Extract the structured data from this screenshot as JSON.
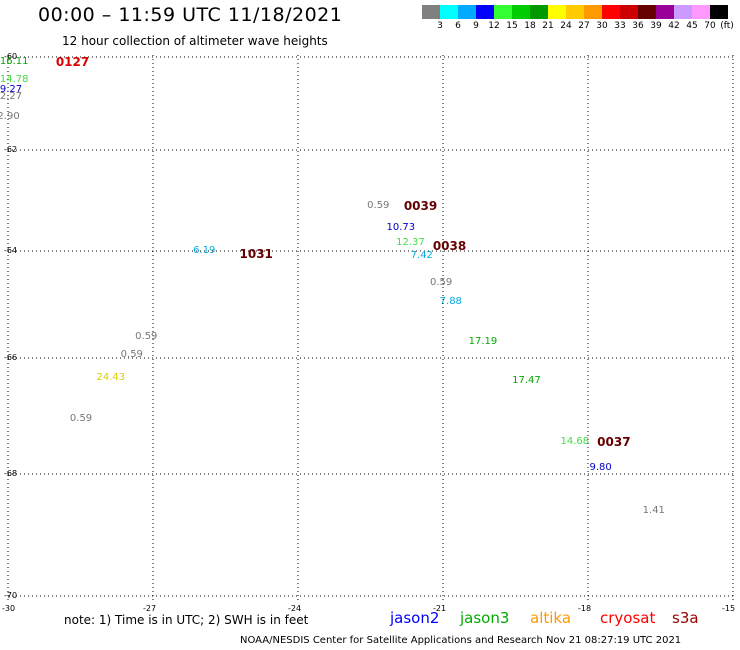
{
  "title": "00:00 – 11:59 UTC 11/18/2021",
  "subtitle": "12 hour collection of altimeter wave heights",
  "colorbar": {
    "colors": [
      "#808080",
      "#00ffff",
      "#00aaff",
      "#0000ff",
      "#33ff33",
      "#00cc00",
      "#009900",
      "#ffff00",
      "#ffcc00",
      "#ff9900",
      "#ff0000",
      "#cc0000",
      "#660000",
      "#990099",
      "#cc99ff",
      "#ff99ff",
      "#000000"
    ],
    "ticks": [
      "3",
      "6",
      "9",
      "12",
      "15",
      "18",
      "21",
      "24",
      "27",
      "30",
      "33",
      "36",
      "39",
      "42",
      "45",
      "70"
    ],
    "unit": "(ft)"
  },
  "axes": {
    "lat_labels": [
      "-60",
      "-62",
      "-64",
      "-66",
      "-68",
      "-70"
    ],
    "lon_labels": [
      "-30",
      "-27",
      "-24",
      "-21",
      "-18",
      "-15"
    ]
  },
  "observations": [
    {
      "text": "16.11",
      "color": "#00aa00",
      "lon": -29.9,
      "lat": -60.1
    },
    {
      "text": "14.78",
      "color": "#44dd44",
      "lon": -29.9,
      "lat": -60.5
    },
    {
      "text": "9.27",
      "color": "#0000cc",
      "lon": -29.9,
      "lat": -60.7
    },
    {
      "text": "2.27",
      "color": "#777777",
      "lon": -29.9,
      "lat": -60.85
    },
    {
      "text": "2.90",
      "color": "#777777",
      "lon": -29.95,
      "lat": -61.3
    },
    {
      "text": "0.59",
      "color": "#777777",
      "lon": -22.3,
      "lat": -63.1
    },
    {
      "text": "10.73",
      "color": "#0000cc",
      "lon": -21.9,
      "lat": -63.55
    },
    {
      "text": "12.37",
      "color": "#44dd44",
      "lon": -21.7,
      "lat": -63.85
    },
    {
      "text": "7.42",
      "color": "#00aadd",
      "lon": -21.4,
      "lat": -64.1
    },
    {
      "text": "0.59",
      "color": "#777777",
      "lon": -21.0,
      "lat": -64.6
    },
    {
      "text": "7.88",
      "color": "#00aadd",
      "lon": -20.8,
      "lat": -64.95
    },
    {
      "text": "17.19",
      "color": "#00aa00",
      "lon": -20.2,
      "lat": -65.7
    },
    {
      "text": "6.19",
      "color": "#00aadd",
      "lon": -25.9,
      "lat": -64.0
    },
    {
      "text": "0.59",
      "color": "#777777",
      "lon": -27.1,
      "lat": -65.6
    },
    {
      "text": "0.59",
      "color": "#777777",
      "lon": -27.4,
      "lat": -65.95
    },
    {
      "text": "24.43",
      "color": "#ddcc00",
      "lon": -27.9,
      "lat": -66.35
    },
    {
      "text": "0.59",
      "color": "#777777",
      "lon": -28.45,
      "lat": -67.05
    },
    {
      "text": "17.47",
      "color": "#00aa00",
      "lon": -19.3,
      "lat": -66.4
    },
    {
      "text": "14.68",
      "color": "#44dd44",
      "lon": -18.3,
      "lat": -67.45
    },
    {
      "text": "9.80",
      "color": "#0000cc",
      "lon": -17.7,
      "lat": -67.9
    },
    {
      "text": "1.41",
      "color": "#777777",
      "lon": -16.6,
      "lat": -68.6
    }
  ],
  "pass_labels": [
    {
      "text": "0127",
      "color": "#dd0000",
      "lon": -28.7,
      "lat": -60.1
    },
    {
      "text": "0039",
      "color": "#660000",
      "lon": -21.5,
      "lat": -63.1
    },
    {
      "text": "0038",
      "color": "#660000",
      "lon": -20.9,
      "lat": -63.9
    },
    {
      "text": "1031",
      "color": "#660000",
      "lon": -24.9,
      "lat": -64.05
    },
    {
      "text": "0037",
      "color": "#660000",
      "lon": -17.5,
      "lat": -67.45
    }
  ],
  "note": "note: 1) Time is in UTC; 2) SWH is in feet",
  "legend": [
    {
      "text": "jason2",
      "color": "#0000ff"
    },
    {
      "text": "jason3",
      "color": "#00aa00"
    },
    {
      "text": "altika",
      "color": "#ff9900"
    },
    {
      "text": "cryosat",
      "color": "#ff0000"
    },
    {
      "text": "s3a",
      "color": "#990000"
    }
  ],
  "footer": "NOAA/NESDIS Center for Satellite Applications and Research     Nov 21 08:27:19 UTC 2021"
}
